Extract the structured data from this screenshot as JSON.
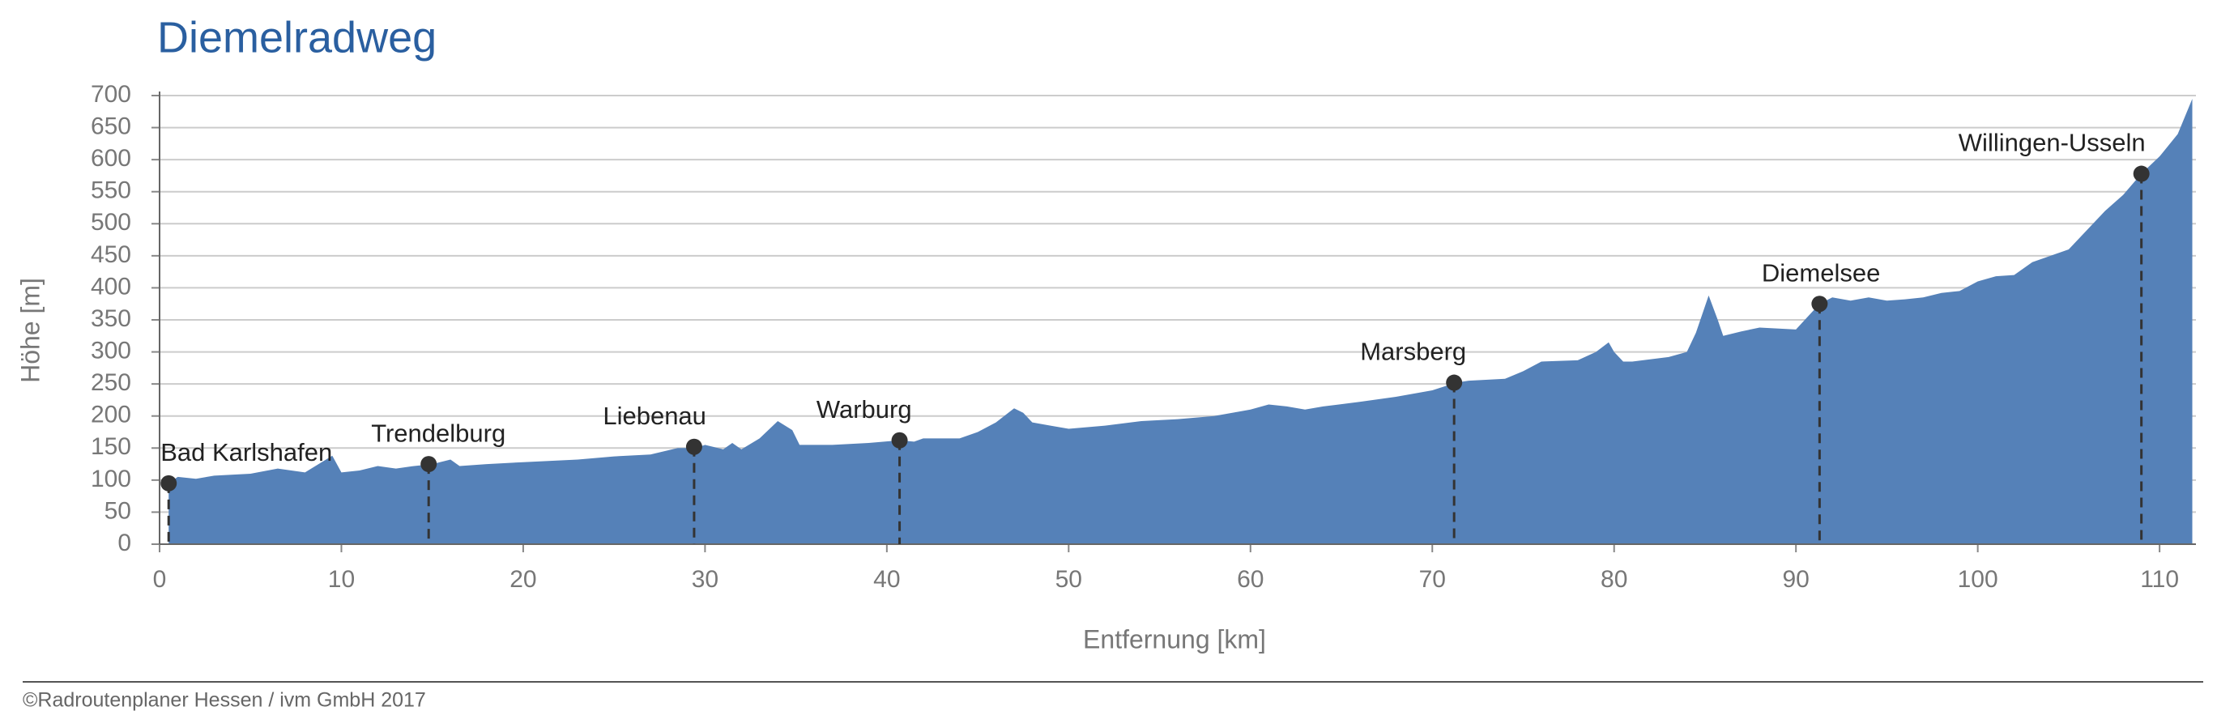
{
  "chart_data": {
    "type": "area",
    "title": "Diemelradweg",
    "x_label": "Entfernung [km]",
    "y_label": "Höhe [m]",
    "x": [
      0.5,
      1,
      2,
      3,
      5,
      6.5,
      8,
      9.5,
      10,
      11,
      12,
      13,
      14,
      15,
      16,
      16.5,
      18,
      20,
      23,
      25,
      27,
      28.5,
      29.5,
      30,
      31,
      31.5,
      32,
      33,
      34,
      34.8,
      35.2,
      37,
      39,
      40.7,
      41.5,
      42,
      44,
      45,
      46,
      47,
      47.5,
      48,
      49,
      50,
      52,
      54,
      56,
      58,
      59,
      60,
      61,
      62,
      63,
      64,
      66,
      68,
      70,
      71.3,
      72,
      74,
      75,
      76,
      78,
      79,
      79.7,
      80,
      80.5,
      81,
      83,
      84,
      84.5,
      85.2,
      85.7,
      86,
      87,
      88,
      90,
      91.3,
      92,
      93,
      94,
      95,
      96,
      97,
      98,
      99,
      100,
      101,
      102,
      103,
      104,
      105,
      106,
      107,
      108,
      109,
      110,
      111,
      111.8
    ],
    "values": [
      95,
      105,
      102,
      107,
      110,
      118,
      112,
      138,
      112,
      115,
      122,
      118,
      122,
      125,
      132,
      122,
      125,
      128,
      132,
      137,
      140,
      150,
      150,
      155,
      148,
      158,
      148,
      165,
      192,
      178,
      155,
      155,
      158,
      162,
      160,
      165,
      165,
      175,
      190,
      212,
      205,
      190,
      185,
      180,
      185,
      192,
      195,
      200,
      205,
      210,
      218,
      215,
      210,
      215,
      222,
      230,
      240,
      252,
      255,
      258,
      270,
      285,
      287,
      300,
      315,
      300,
      285,
      285,
      292,
      300,
      330,
      388,
      350,
      325,
      332,
      338,
      335,
      375,
      385,
      380,
      385,
      380,
      382,
      385,
      392,
      395,
      410,
      418,
      420,
      440,
      450,
      460,
      490,
      520,
      545,
      578,
      605,
      640,
      695
    ],
    "color": "#5581b8",
    "xlim": [
      0,
      112
    ],
    "xticks": [
      0,
      10,
      20,
      30,
      40,
      50,
      60,
      70,
      80,
      90,
      100,
      110
    ],
    "ylim": [
      0,
      700
    ],
    "yticks": [
      0,
      50,
      100,
      150,
      200,
      250,
      300,
      350,
      400,
      450,
      500,
      550,
      600,
      650,
      700
    ],
    "grid": true,
    "towns": [
      {
        "label": "Bad Karlshafen",
        "x": 0.5,
        "y": 95
      },
      {
        "label": "Trendelburg",
        "x": 14.8,
        "y": 125
      },
      {
        "label": "Liebenau",
        "x": 29.4,
        "y": 152
      },
      {
        "label": "Warburg",
        "x": 40.7,
        "y": 162
      },
      {
        "label": "Marsberg",
        "x": 71.2,
        "y": 252
      },
      {
        "label": "Diemelsee",
        "x": 91.3,
        "y": 375
      },
      {
        "label": "Willingen-Usseln",
        "x": 109,
        "y": 578
      }
    ]
  },
  "footer": "©Radroutenplaner Hessen / ivm GmbH 2017"
}
